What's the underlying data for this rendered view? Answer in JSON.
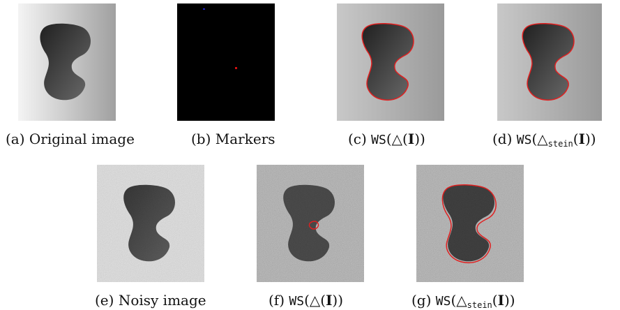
{
  "figure": {
    "panels": [
      {
        "id": "a",
        "label": "(a)",
        "text": "Original image",
        "kind": "original",
        "contour": false
      },
      {
        "id": "b",
        "label": "(b)",
        "text": "Markers",
        "kind": "markers",
        "contour": false
      },
      {
        "id": "c",
        "label": "(c)",
        "ws": "WS",
        "op_pre": "(△(",
        "bold_i": "I",
        "op_post": "))",
        "kind": "original",
        "contour": "full"
      },
      {
        "id": "d",
        "label": "(d)",
        "ws": "WS",
        "op_pre": "(△",
        "sub": "stein",
        "op_mid": "(",
        "bold_i": "I",
        "op_post": "))",
        "kind": "original",
        "contour": "full"
      },
      {
        "id": "e",
        "label": "(e)",
        "text": "Noisy image",
        "kind": "noisy",
        "contour": false
      },
      {
        "id": "f",
        "label": "(f)",
        "ws": "WS",
        "op_pre": "(△(",
        "bold_i": "I",
        "op_post": "))",
        "kind": "noisy",
        "contour": "partial"
      },
      {
        "id": "g",
        "label": "(g)",
        "ws": "WS",
        "op_pre": "(△",
        "sub": "stein",
        "op_mid": "(",
        "bold_i": "I",
        "op_post": "))",
        "kind": "noisy",
        "contour": "full"
      }
    ],
    "colors": {
      "contour": "#e02020",
      "marker_inner": "#d01010",
      "marker_outer": "#2020c0"
    }
  }
}
